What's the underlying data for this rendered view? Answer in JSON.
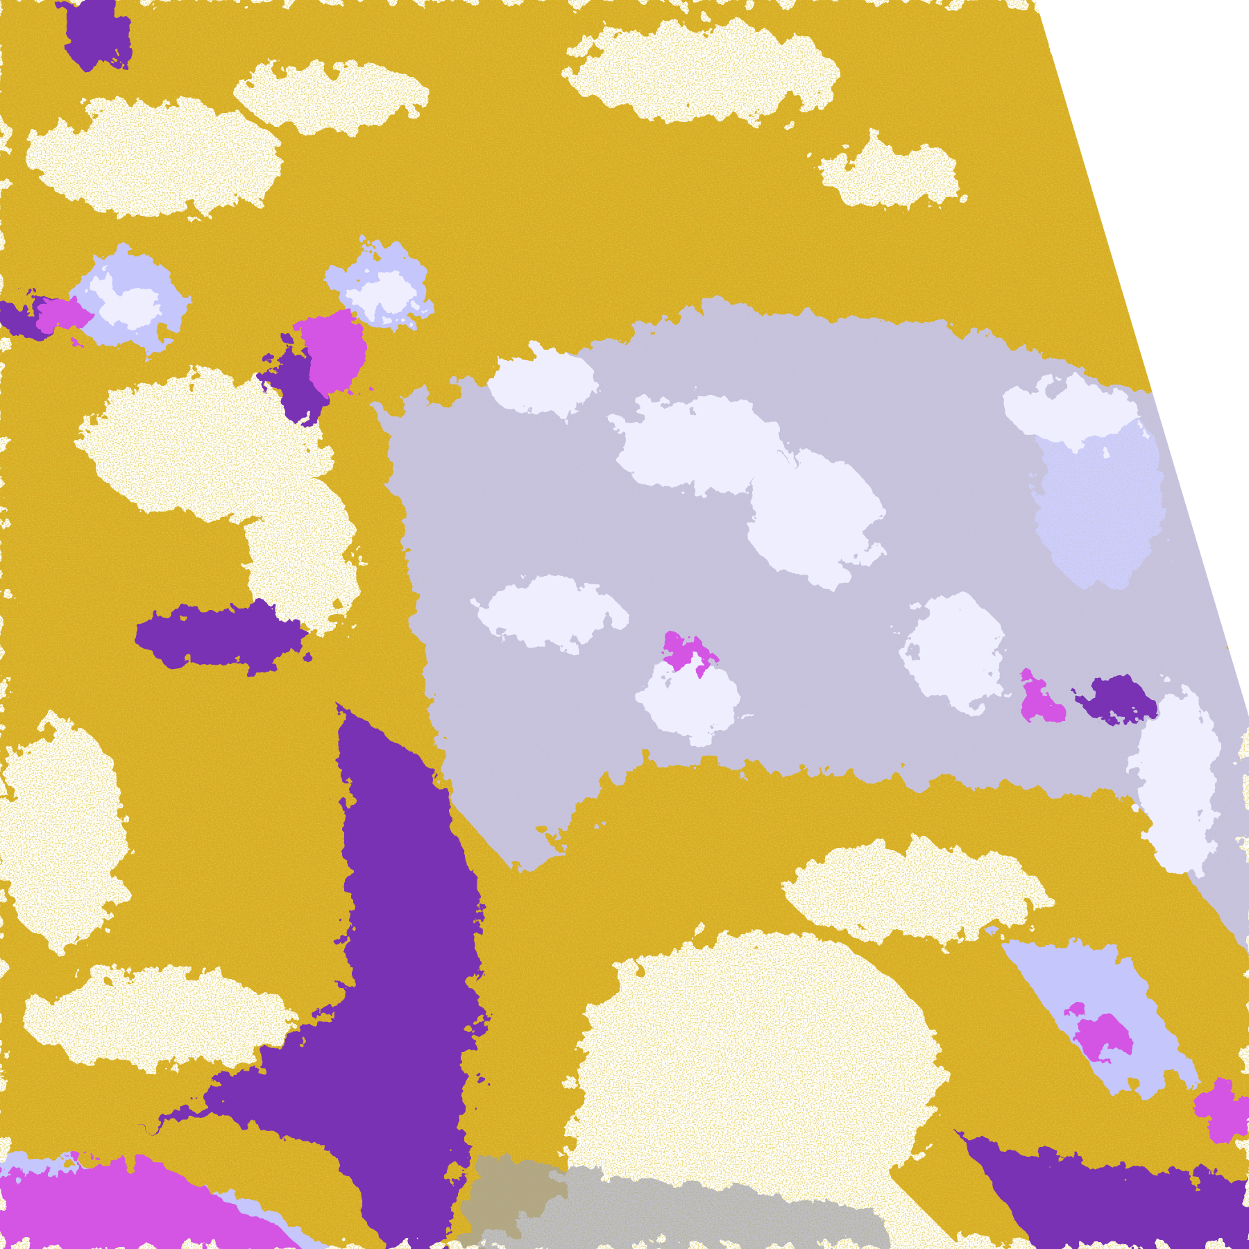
{
  "image": {
    "kind": "false-color satellite cloud classification",
    "palette": {
      "background": "#ffffff",
      "low_cloud": "#d4a40c",
      "low_cloud_dark": "#b8900a",
      "high_thick": "#7a32b4",
      "high_thin": "#d455e4",
      "cirrus": "#c4c6fc",
      "deep_convection": "#eeeeff",
      "edge_gray": "#a2a2aa",
      "swath_edge": "#ffffff"
    },
    "regions": [
      {
        "class": "low_cloud"
      },
      {
        "class": "high_thick"
      },
      {
        "class": "high_thin"
      },
      {
        "class": "cirrus"
      },
      {
        "class": "deep_convection"
      },
      {
        "class": "edge_gray"
      }
    ]
  }
}
